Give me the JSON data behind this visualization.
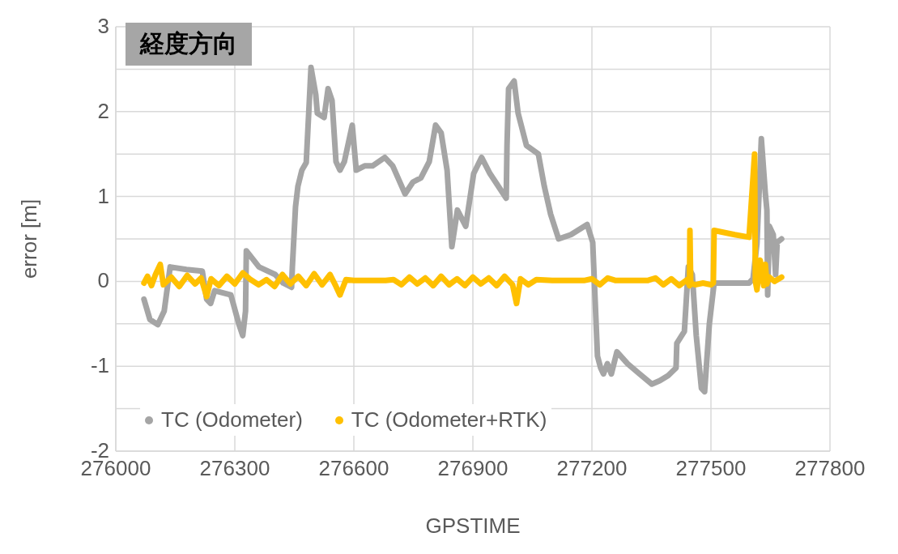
{
  "chart_data": {
    "type": "line",
    "title": "経度方向",
    "xlabel": "GPSTIME",
    "ylabel": "error [m]",
    "xlim": [
      276000,
      277800
    ],
    "xticks": [
      276000,
      276300,
      276600,
      276900,
      277200,
      277500,
      277800
    ],
    "ylim": [
      -2,
      3
    ],
    "yticks": [
      -2,
      {
        "value": -1.5,
        "label": null
      },
      -1,
      {
        "value": -0.5,
        "label": null
      },
      0,
      {
        "value": 0.5,
        "label": null
      },
      1,
      {
        "value": 1.5,
        "label": null
      },
      2,
      {
        "value": 2.5,
        "label": null
      },
      3
    ],
    "grid": true,
    "legend": "bottom left",
    "marker": "none",
    "line_style": "solid",
    "series": [
      {
        "name": "TC (Odometer)",
        "color": "#a5a5a5",
        "x": [
          276071,
          276086,
          276106,
          276122,
          276137,
          276178,
          276218,
          276229,
          276239,
          276249,
          276290,
          276310,
          276320,
          276327,
          276329,
          276361,
          276402,
          276422,
          276443,
          276445,
          276453,
          276459,
          276469,
          276480,
          276492,
          276504,
          276508,
          276525,
          276535,
          276545,
          276555,
          276565,
          276576,
          276596,
          276606,
          276627,
          276647,
          276678,
          276698,
          276729,
          276749,
          276769,
          276790,
          276806,
          276820,
          276835,
          276847,
          276861,
          276882,
          276902,
          276922,
          276943,
          276984,
          276986,
          276990,
          277004,
          277014,
          277035,
          277065,
          277080,
          277096,
          277116,
          277147,
          277188,
          277202,
          277214,
          277222,
          277229,
          277239,
          277249,
          277263,
          277290,
          277320,
          277351,
          277371,
          277392,
          277412,
          277414,
          277433,
          277443,
          277453,
          277463,
          277476,
          277484,
          277496,
          277508,
          277545,
          277596,
          277606,
          277616,
          277627,
          277637,
          277641,
          277643,
          277647,
          277657,
          277663,
          277667,
          277678
        ],
        "values": [
          -0.21,
          -0.45,
          -0.51,
          -0.35,
          0.17,
          0.14,
          0.12,
          -0.21,
          -0.26,
          -0.11,
          -0.16,
          -0.5,
          -0.64,
          -0.35,
          0.36,
          0.17,
          0.08,
          -0.02,
          -0.07,
          0.17,
          0.88,
          1.12,
          1.31,
          1.4,
          2.52,
          2.2,
          1.98,
          1.93,
          2.27,
          2.13,
          1.41,
          1.31,
          1.41,
          1.84,
          1.31,
          1.36,
          1.36,
          1.46,
          1.36,
          1.03,
          1.17,
          1.22,
          1.41,
          1.84,
          1.75,
          1.31,
          0.41,
          0.84,
          0.65,
          1.27,
          1.46,
          1.27,
          0.98,
          1.6,
          2.27,
          2.36,
          1.98,
          1.6,
          1.5,
          1.12,
          0.79,
          0.5,
          0.55,
          0.67,
          0.46,
          -0.88,
          -1.02,
          -1.09,
          -0.97,
          -1.09,
          -0.83,
          -0.97,
          -1.09,
          -1.21,
          -1.17,
          -1.11,
          -1.02,
          -0.73,
          -0.59,
          0.17,
          0.08,
          -0.64,
          -1.26,
          -1.3,
          -0.5,
          -0.02,
          -0.02,
          -0.02,
          0.03,
          0.45,
          1.68,
          1.04,
          0.84,
          -0.16,
          0.65,
          0.55,
          0.08,
          0.46,
          0.5
        ]
      },
      {
        "name": "TC (Odometer+RTK)",
        "color": "#ffc000",
        "x": [
          276071,
          276080,
          276090,
          276100,
          276112,
          276120,
          276140,
          276160,
          276180,
          276200,
          276215,
          276229,
          276240,
          276260,
          276280,
          276300,
          276320,
          276340,
          276360,
          276380,
          276400,
          276420,
          276440,
          276460,
          276480,
          276500,
          276520,
          276540,
          276555,
          276565,
          276580,
          276600,
          276640,
          276680,
          276700,
          276720,
          276740,
          276760,
          276780,
          276800,
          276820,
          276840,
          276860,
          276880,
          276900,
          276920,
          276940,
          276960,
          276980,
          277000,
          277010,
          277020,
          277040,
          277060,
          277100,
          277140,
          277180,
          277200,
          277220,
          277240,
          277260,
          277300,
          277340,
          277360,
          277380,
          277400,
          277420,
          277440,
          277446,
          277447,
          277449,
          277460,
          277480,
          277500,
          277506,
          277508,
          277560,
          277596,
          277610,
          277612,
          277616,
          277624,
          277633,
          277637,
          277641,
          277647,
          277660,
          277678
        ],
        "values": [
          -0.02,
          0.06,
          -0.05,
          0.08,
          0.2,
          -0.04,
          0.05,
          -0.06,
          0.07,
          -0.03,
          0.04,
          -0.18,
          0.03,
          -0.05,
          0.06,
          -0.03,
          0.1,
          0.02,
          -0.04,
          0.02,
          -0.06,
          0.08,
          -0.03,
          0.06,
          -0.05,
          0.09,
          -0.04,
          0.08,
          -0.06,
          -0.16,
          0.02,
          0.01,
          0.01,
          0.01,
          0.02,
          -0.04,
          0.05,
          -0.03,
          0.04,
          -0.05,
          0.06,
          -0.04,
          0.03,
          -0.05,
          0.05,
          -0.03,
          0.04,
          -0.05,
          0.06,
          -0.04,
          -0.26,
          0.03,
          -0.04,
          0.02,
          0.01,
          0.01,
          0.01,
          0.03,
          -0.04,
          0.04,
          0.01,
          0.01,
          0.01,
          0.04,
          -0.04,
          0.03,
          -0.05,
          0.02,
          -0.05,
          0.6,
          -0.02,
          -0.04,
          -0.02,
          -0.04,
          -0.02,
          0.6,
          0.55,
          0.52,
          1.5,
          0.0,
          -0.1,
          0.25,
          -0.05,
          0.2,
          -0.03,
          0.05,
          0.0,
          0.05
        ]
      }
    ]
  }
}
